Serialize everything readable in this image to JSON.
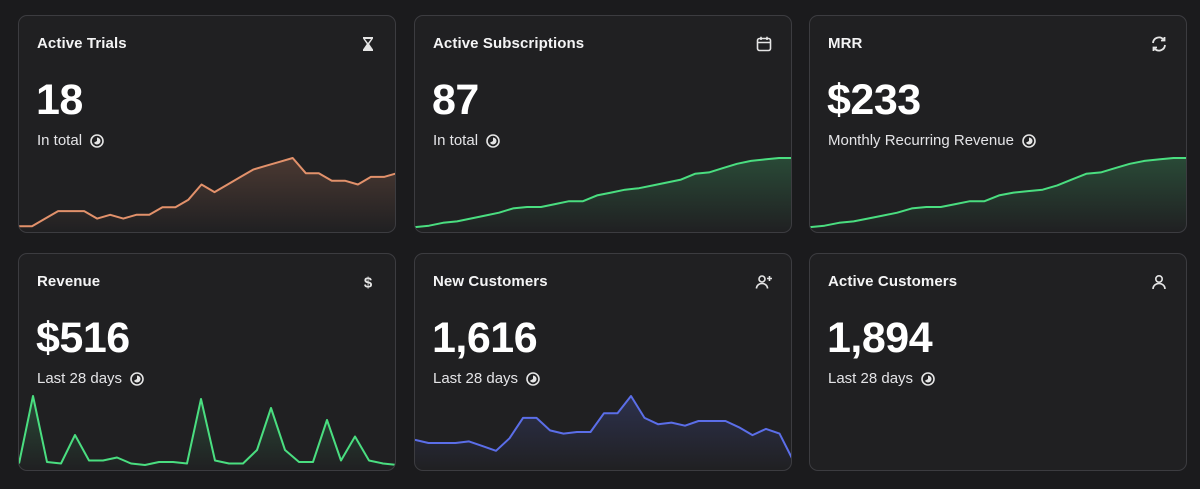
{
  "cards": [
    {
      "title": "Active Trials",
      "value": "18",
      "subtitle": "In total",
      "icon": "hourglass-icon",
      "color": "#e2916b",
      "series": [
        1,
        1,
        3,
        5,
        5,
        5,
        3,
        4,
        3,
        4,
        4,
        6,
        6,
        8,
        12,
        10,
        12,
        14,
        16,
        17,
        18,
        19,
        15,
        15,
        13,
        13,
        12,
        14,
        14,
        15
      ]
    },
    {
      "title": "Active Subscriptions",
      "value": "87",
      "subtitle": "In total",
      "icon": "calendar-icon",
      "color": "#4ade80",
      "series": [
        2,
        3,
        5,
        6,
        8,
        10,
        12,
        15,
        16,
        16,
        18,
        20,
        20,
        24,
        26,
        28,
        29,
        31,
        33,
        35,
        39,
        40,
        43,
        46,
        48,
        49,
        50,
        50
      ]
    },
    {
      "title": "MRR",
      "value": "$233",
      "subtitle": "Monthly Recurring Revenue",
      "icon": "refresh-icon",
      "color": "#4ade80",
      "series": [
        2,
        3,
        5,
        6,
        8,
        10,
        12,
        15,
        16,
        16,
        18,
        20,
        20,
        24,
        26,
        27,
        28,
        31,
        35,
        39,
        40,
        43,
        46,
        48,
        49,
        50,
        50
      ]
    },
    {
      "title": "Revenue",
      "value": "$516",
      "subtitle": "Last 28 days",
      "icon": "dollar-icon",
      "color": "#4ade80",
      "series": [
        3,
        48,
        4,
        3,
        22,
        5,
        5,
        7,
        3,
        2,
        4,
        4,
        3,
        46,
        5,
        3,
        3,
        12,
        40,
        12,
        4,
        4,
        32,
        5,
        21,
        5,
        3,
        2
      ]
    },
    {
      "title": "New Customers",
      "value": "1,616",
      "subtitle": "Last 28 days",
      "icon": "user-plus-icon",
      "color": "#5b6ee8",
      "series": [
        18,
        16,
        16,
        16,
        17,
        14,
        11,
        19,
        32,
        32,
        24,
        22,
        23,
        23,
        35,
        35,
        46,
        32,
        28,
        29,
        27,
        30,
        30,
        30,
        26,
        21,
        25,
        22,
        5
      ]
    },
    {
      "title": "Active Customers",
      "value": "1,894",
      "subtitle": "Last 28 days",
      "icon": "user-icon",
      "color": "#4ade80",
      "series": []
    }
  ]
}
